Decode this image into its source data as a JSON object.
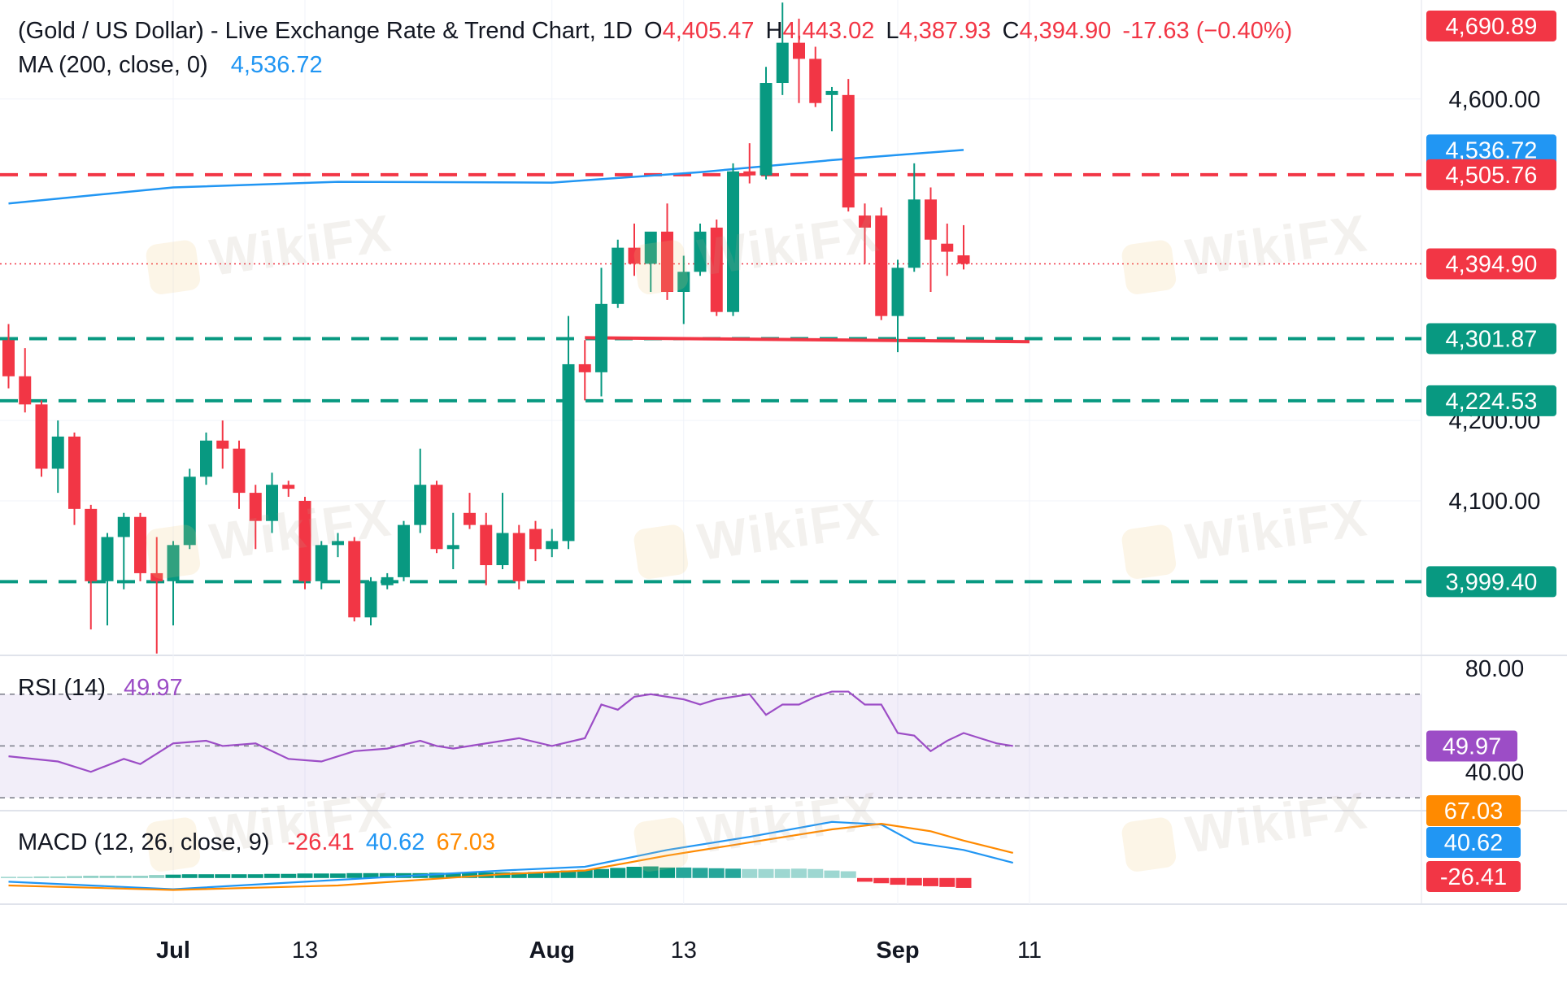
{
  "header": {
    "symbol": "(Gold / US Dollar) - Live Exchange Rate & Trend Chart, 1D",
    "open_label": "O",
    "open": "4,405.47",
    "high_label": "H",
    "high": "4,443.02",
    "low_label": "L",
    "low": "4,387.93",
    "close_label": "C",
    "close": "4,394.90",
    "change": "-17.63 (−0.40%)"
  },
  "ma_legend": {
    "label": "MA (200, close, 0)",
    "value": "4,536.72"
  },
  "rsi_legend": {
    "label": "RSI (14)",
    "value": "49.97"
  },
  "macd_legend": {
    "label": "MACD (12, 26, close, 9)",
    "hist": "-26.41",
    "macd": "40.62",
    "signal": "67.03"
  },
  "watermark": "WikiFX",
  "colors": {
    "up": "#089981",
    "down": "#f23645",
    "ma": "#2196f3",
    "rsi": "#9c4dc6",
    "macd": "#2196f3",
    "signal": "#ff8a00",
    "support": "#089981",
    "resistance": "#f23645"
  },
  "chart_data": [
    {
      "type": "candlestick",
      "title": "(Gold / US Dollar) - Live Exchange Rate & Trend Chart, 1D",
      "x_ticks": [
        "Jul",
        "13",
        "Aug",
        "13",
        "Sep",
        "11"
      ],
      "y_ticks": [
        4600,
        4200,
        4100
      ],
      "y_tick_labels": [
        "4,600.00",
        "4,200.00",
        "4,100.00"
      ],
      "ylim": [
        3930,
        4705
      ],
      "candles": [
        {
          "o": 4300,
          "h": 4320,
          "l": 4240,
          "c": 4255
        },
        {
          "o": 4255,
          "h": 4290,
          "l": 4210,
          "c": 4220
        },
        {
          "o": 4220,
          "h": 4225,
          "l": 4130,
          "c": 4140
        },
        {
          "o": 4140,
          "h": 4200,
          "l": 4110,
          "c": 4180
        },
        {
          "o": 4180,
          "h": 4185,
          "l": 4070,
          "c": 4090
        },
        {
          "o": 4090,
          "h": 4095,
          "l": 3940,
          "c": 4000
        },
        {
          "o": 4000,
          "h": 4060,
          "l": 3945,
          "c": 4055
        },
        {
          "o": 4055,
          "h": 4085,
          "l": 3990,
          "c": 4080
        },
        {
          "o": 4080,
          "h": 4085,
          "l": 4000,
          "c": 4010
        },
        {
          "o": 4010,
          "h": 4055,
          "l": 3910,
          "c": 4000
        },
        {
          "o": 4000,
          "h": 4050,
          "l": 3945,
          "c": 4045
        },
        {
          "o": 4045,
          "h": 4140,
          "l": 4040,
          "c": 4130
        },
        {
          "o": 4130,
          "h": 4185,
          "l": 4120,
          "c": 4175
        },
        {
          "o": 4175,
          "h": 4200,
          "l": 4140,
          "c": 4165
        },
        {
          "o": 4165,
          "h": 4175,
          "l": 4090,
          "c": 4110
        },
        {
          "o": 4110,
          "h": 4120,
          "l": 4040,
          "c": 4075
        },
        {
          "o": 4075,
          "h": 4135,
          "l": 4060,
          "c": 4120
        },
        {
          "o": 4120,
          "h": 4125,
          "l": 4105,
          "c": 4115
        },
        {
          "o": 4100,
          "h": 4105,
          "l": 3990,
          "c": 4000
        },
        {
          "o": 4000,
          "h": 4050,
          "l": 3990,
          "c": 4045
        },
        {
          "o": 4045,
          "h": 4060,
          "l": 4030,
          "c": 4050
        },
        {
          "o": 4050,
          "h": 4055,
          "l": 3950,
          "c": 3955
        },
        {
          "o": 3955,
          "h": 4005,
          "l": 3945,
          "c": 4000
        },
        {
          "o": 3995,
          "h": 4010,
          "l": 3990,
          "c": 4005
        },
        {
          "o": 4005,
          "h": 4075,
          "l": 4000,
          "c": 4070
        },
        {
          "o": 4070,
          "h": 4165,
          "l": 4060,
          "c": 4120
        },
        {
          "o": 4120,
          "h": 4125,
          "l": 4035,
          "c": 4040
        },
        {
          "o": 4040,
          "h": 4085,
          "l": 4015,
          "c": 4045
        },
        {
          "o": 4085,
          "h": 4110,
          "l": 4065,
          "c": 4070
        },
        {
          "o": 4070,
          "h": 4085,
          "l": 3995,
          "c": 4020
        },
        {
          "o": 4020,
          "h": 4110,
          "l": 4015,
          "c": 4060
        },
        {
          "o": 4060,
          "h": 4070,
          "l": 3990,
          "c": 4000
        },
        {
          "o": 4065,
          "h": 4075,
          "l": 4025,
          "c": 4040
        },
        {
          "o": 4040,
          "h": 4065,
          "l": 4030,
          "c": 4050
        },
        {
          "o": 4050,
          "h": 4330,
          "l": 4040,
          "c": 4270
        },
        {
          "o": 4270,
          "h": 4300,
          "l": 4225,
          "c": 4260
        },
        {
          "o": 4260,
          "h": 4390,
          "l": 4230,
          "c": 4345
        },
        {
          "o": 4345,
          "h": 4425,
          "l": 4340,
          "c": 4415
        },
        {
          "o": 4415,
          "h": 4445,
          "l": 4380,
          "c": 4395
        },
        {
          "o": 4395,
          "h": 4430,
          "l": 4360,
          "c": 4435
        },
        {
          "o": 4435,
          "h": 4470,
          "l": 4350,
          "c": 4360
        },
        {
          "o": 4360,
          "h": 4405,
          "l": 4320,
          "c": 4385
        },
        {
          "o": 4385,
          "h": 4445,
          "l": 4380,
          "c": 4435
        },
        {
          "o": 4440,
          "h": 4450,
          "l": 4330,
          "c": 4335
        },
        {
          "o": 4335,
          "h": 4520,
          "l": 4330,
          "c": 4510
        },
        {
          "o": 4510,
          "h": 4545,
          "l": 4495,
          "c": 4505
        },
        {
          "o": 4505,
          "h": 4640,
          "l": 4500,
          "c": 4620
        },
        {
          "o": 4620,
          "h": 4720,
          "l": 4605,
          "c": 4670
        },
        {
          "o": 4670,
          "h": 4700,
          "l": 4595,
          "c": 4650
        },
        {
          "o": 4650,
          "h": 4665,
          "l": 4590,
          "c": 4595
        },
        {
          "o": 4605,
          "h": 4615,
          "l": 4560,
          "c": 4610
        },
        {
          "o": 4605,
          "h": 4625,
          "l": 4460,
          "c": 4465
        },
        {
          "o": 4455,
          "h": 4470,
          "l": 4395,
          "c": 4440
        },
        {
          "o": 4455,
          "h": 4465,
          "l": 4325,
          "c": 4330
        },
        {
          "o": 4330,
          "h": 4400,
          "l": 4285,
          "c": 4390
        },
        {
          "o": 4390,
          "h": 4520,
          "l": 4385,
          "c": 4475
        },
        {
          "o": 4475,
          "h": 4490,
          "l": 4360,
          "c": 4425
        },
        {
          "o": 4420,
          "h": 4445,
          "l": 4380,
          "c": 4410
        },
        {
          "o": 4405.47,
          "h": 4443.02,
          "l": 4387.93,
          "c": 4394.9
        }
      ],
      "ma200": {
        "name": "MA (200, close, 0)",
        "points": [
          [
            0,
            4470
          ],
          [
            10,
            4490
          ],
          [
            20,
            4497
          ],
          [
            33,
            4496
          ],
          [
            42,
            4509
          ],
          [
            50,
            4524
          ],
          [
            58,
            4536.72
          ]
        ]
      },
      "horizontal_levels": [
        {
          "value": 4505.76,
          "label": "4,505.76",
          "style": "dashed",
          "color": "#f23645"
        },
        {
          "value": 4301.87,
          "label": "4,301.87",
          "style": "dashed",
          "color": "#089981"
        },
        {
          "value": 4224.53,
          "label": "4,224.53",
          "style": "dashed",
          "color": "#089981"
        },
        {
          "value": 3999.4,
          "label": "3,999.40",
          "style": "dashed",
          "color": "#089981"
        }
      ],
      "trend_line": {
        "from": [
          35,
          4303
        ],
        "to": [
          62,
          4298
        ],
        "color": "#f23645"
      },
      "price_tags": [
        {
          "value": 4690.89,
          "label": "4,690.89",
          "color": "#f23645"
        },
        {
          "value": 4536.72,
          "label": "4,536.72",
          "color": "#2196f3"
        },
        {
          "value": 4505.76,
          "label": "4,505.76",
          "color": "#f23645"
        },
        {
          "value": 4394.9,
          "label": "4,394.90",
          "color": "#f23645"
        },
        {
          "value": 4301.87,
          "label": "4,301.87",
          "color": "#089981"
        },
        {
          "value": 4224.53,
          "label": "4,224.53",
          "color": "#089981"
        },
        {
          "value": 3999.4,
          "label": "3,999.40",
          "color": "#089981"
        }
      ]
    },
    {
      "type": "line",
      "title": "RSI (14)",
      "y_tick_labels": [
        "80.00",
        "40.00"
      ],
      "band": [
        30,
        70
      ],
      "midline": 50,
      "current": 49.97,
      "current_label": "49.97",
      "points": [
        [
          0,
          46
        ],
        [
          3,
          44
        ],
        [
          5,
          40
        ],
        [
          7,
          45
        ],
        [
          8,
          43
        ],
        [
          10,
          51
        ],
        [
          12,
          52
        ],
        [
          13,
          50
        ],
        [
          15,
          51
        ],
        [
          16,
          48
        ],
        [
          17,
          45
        ],
        [
          19,
          44
        ],
        [
          21,
          48
        ],
        [
          23,
          49
        ],
        [
          25,
          52
        ],
        [
          26,
          50
        ],
        [
          27,
          49
        ],
        [
          29,
          51
        ],
        [
          31,
          53
        ],
        [
          33,
          50
        ],
        [
          35,
          53
        ],
        [
          36,
          66
        ],
        [
          37,
          64
        ],
        [
          38,
          69
        ],
        [
          39,
          70
        ],
        [
          41,
          68
        ],
        [
          42,
          66
        ],
        [
          43,
          68
        ],
        [
          45,
          70
        ],
        [
          46,
          62
        ],
        [
          47,
          66
        ],
        [
          48,
          66
        ],
        [
          49,
          69
        ],
        [
          50,
          71
        ],
        [
          51,
          71
        ],
        [
          52,
          66
        ],
        [
          53,
          66
        ],
        [
          54,
          55
        ],
        [
          55,
          54
        ],
        [
          56,
          48
        ],
        [
          57,
          52
        ],
        [
          58,
          55
        ],
        [
          59,
          53
        ],
        [
          60,
          51
        ],
        [
          61,
          50
        ]
      ],
      "ylim": [
        25,
        85
      ]
    },
    {
      "type": "line",
      "title": "MACD (12, 26, close, 9)",
      "series": [
        {
          "name": "MACD",
          "color": "#2196f3",
          "points": [
            [
              0,
              -10
            ],
            [
              10,
              -30
            ],
            [
              20,
              -5
            ],
            [
              30,
              20
            ],
            [
              35,
              30
            ],
            [
              40,
              75
            ],
            [
              45,
              110
            ],
            [
              50,
              150
            ],
            [
              53,
              143
            ],
            [
              55,
              95
            ],
            [
              58,
              75
            ],
            [
              61,
              40.62
            ]
          ]
        },
        {
          "name": "Signal",
          "color": "#ff8a00",
          "points": [
            [
              0,
              -20
            ],
            [
              10,
              -32
            ],
            [
              20,
              -20
            ],
            [
              30,
              10
            ],
            [
              35,
              20
            ],
            [
              40,
              60
            ],
            [
              45,
              95
            ],
            [
              50,
              130
            ],
            [
              53,
              145
            ],
            [
              56,
              125
            ],
            [
              58,
              100
            ],
            [
              61,
              67.03
            ]
          ]
        }
      ],
      "histogram": [
        3,
        3,
        4,
        4,
        5,
        6,
        6,
        6,
        6,
        8,
        9,
        10,
        10,
        10,
        10,
        10,
        11,
        11,
        12,
        12,
        12,
        13,
        13,
        13,
        13,
        13,
        14,
        14,
        14,
        15,
        15,
        15,
        16,
        16,
        20,
        22,
        24,
        27,
        30,
        31,
        28,
        28,
        27,
        26,
        25,
        24,
        24,
        24,
        25,
        24,
        20,
        18,
        -10,
        -14,
        -18,
        -20,
        -22,
        -24,
        -26.41
      ],
      "tags": [
        "67.03",
        "40.62",
        "-26.41"
      ],
      "ylim": [
        -70,
        180
      ]
    }
  ]
}
